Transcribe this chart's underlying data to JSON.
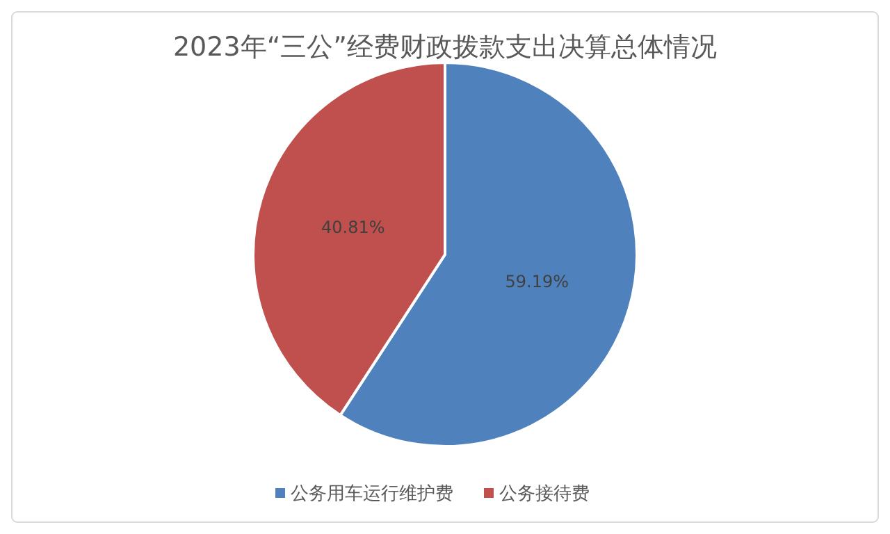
{
  "chart_data": {
    "type": "pie",
    "title": "2023年“三公”经费财政拨款支出决算总体情况",
    "categories": [
      "公务用车运行维护费",
      "公务接待费"
    ],
    "values": [
      59.19,
      40.81
    ],
    "colors": [
      "#4f81bd",
      "#c0504d"
    ],
    "value_labels": [
      "59.19%",
      "40.81%"
    ],
    "legend": "bottom"
  }
}
